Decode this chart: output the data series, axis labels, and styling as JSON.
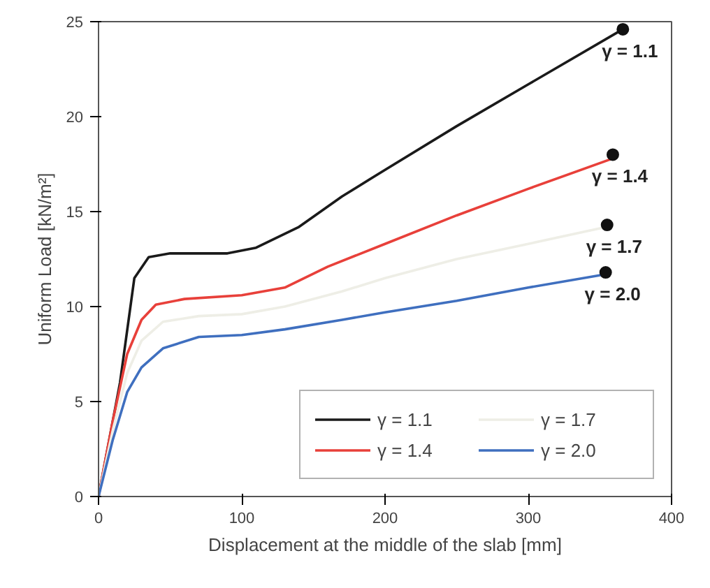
{
  "chart_data": {
    "type": "line",
    "xlabel": "Displacement at the middle of the slab [mm]",
    "ylabel": "Uniform Load [kN/m²]",
    "xlim": [
      0,
      400
    ],
    "ylim": [
      0,
      25
    ],
    "xticks": [
      0,
      100,
      200,
      300,
      400
    ],
    "yticks": [
      0,
      5,
      10,
      15,
      20,
      25
    ],
    "grid": false,
    "legend": "bottom right",
    "marker": "none",
    "line_style": "solid",
    "series": [
      {
        "name": "γ = 1.1",
        "color": "#1a1a1a",
        "x": [
          0,
          15,
          25,
          35,
          50,
          90,
          110,
          140,
          170,
          200,
          250,
          300,
          366
        ],
        "values": [
          0,
          6,
          11.5,
          12.6,
          12.8,
          12.8,
          13.1,
          14.2,
          15.8,
          17.2,
          19.5,
          21.7,
          24.6
        ]
      },
      {
        "name": "γ = 1.4",
        "color": "#e8403a",
        "x": [
          0,
          10,
          20,
          30,
          40,
          60,
          100,
          130,
          160,
          200,
          250,
          300,
          359
        ],
        "values": [
          0,
          4,
          7.5,
          9.3,
          10.1,
          10.4,
          10.6,
          11,
          12.1,
          13.3,
          14.8,
          16.2,
          17.8
        ]
      },
      {
        "name": "γ = 1.7",
        "color": "#eeeee6",
        "x": [
          0,
          10,
          20,
          30,
          45,
          70,
          100,
          130,
          170,
          200,
          250,
          300,
          355
        ],
        "values": [
          0,
          3.5,
          6.5,
          8.2,
          9.2,
          9.5,
          9.6,
          10,
          10.8,
          11.5,
          12.5,
          13.3,
          14.2
        ]
      },
      {
        "name": "γ = 2.0",
        "color": "#3f6fbf",
        "x": [
          0,
          10,
          20,
          30,
          45,
          70,
          100,
          130,
          170,
          200,
          250,
          300,
          354
        ],
        "values": [
          0,
          3,
          5.5,
          6.8,
          7.8,
          8.4,
          8.5,
          8.8,
          9.3,
          9.7,
          10.3,
          11,
          11.7
        ]
      },
      {
        "type": "scatter",
        "marker": "circle",
        "color": "#111111",
        "x": [
          366,
          359,
          355,
          354
        ],
        "values": [
          24.6,
          18,
          14.3,
          11.8
        ]
      }
    ],
    "annotations": [
      {
        "text": "γ = 1.1",
        "x": 366,
        "y": 24.6
      },
      {
        "text": "γ = 1.4",
        "x": 359,
        "y": 18
      },
      {
        "text": "γ = 1.7",
        "x": 355,
        "y": 14.3
      },
      {
        "text": "γ = 2.0",
        "x": 354,
        "y": 11.8
      }
    ]
  }
}
